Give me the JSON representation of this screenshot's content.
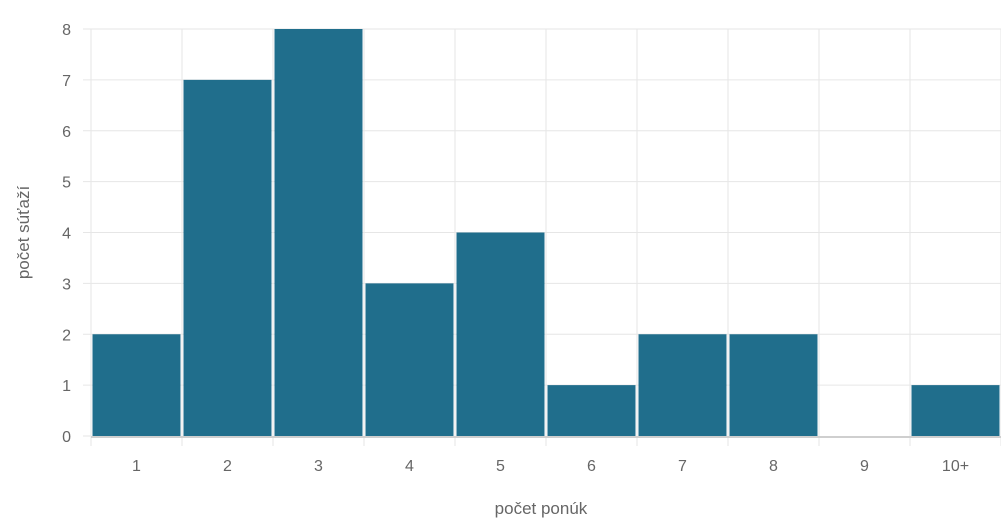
{
  "chart_data": {
    "type": "bar",
    "categories": [
      "1",
      "2",
      "3",
      "4",
      "5",
      "6",
      "7",
      "8",
      "9",
      "10+"
    ],
    "values": [
      2,
      7,
      8,
      3,
      4,
      1,
      2,
      2,
      0,
      1
    ],
    "xlabel": "počet ponúk",
    "ylabel": "počet súťaží",
    "ylim": [
      0,
      8
    ],
    "yticks": [
      "0",
      "1",
      "2",
      "3",
      "4",
      "5",
      "6",
      "7",
      "8"
    ],
    "grid": true,
    "legend": "none",
    "colors": {
      "bar": "#206e8c",
      "grid": "#e6e6e6",
      "axis": "#cfcfcf",
      "text": "#666666"
    }
  }
}
